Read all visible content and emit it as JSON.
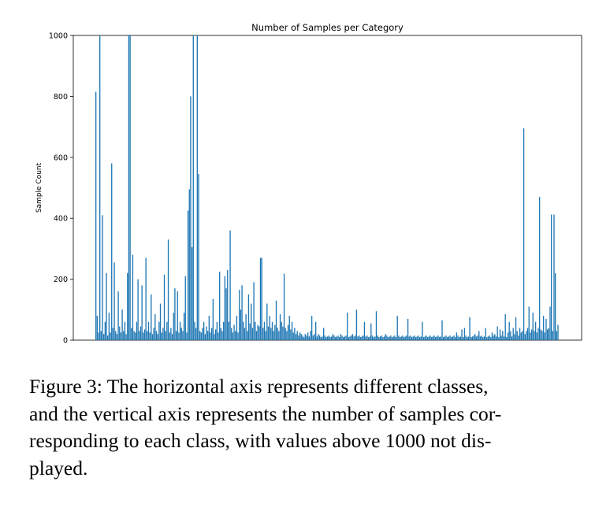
{
  "chart_data": {
    "type": "bar",
    "title": "Number of Samples per Category",
    "xlabel": "",
    "ylabel": "Sample Count",
    "ylim": [
      0,
      1000
    ],
    "yticks": [
      0,
      200,
      400,
      600,
      800,
      1000
    ],
    "grid": false,
    "legend": "none",
    "bar_color": "#1f77b4",
    "series": [
      {
        "values": [
          815,
          80,
          25,
          1000,
          30,
          410,
          20,
          60,
          220,
          15,
          90,
          25,
          580,
          40,
          255,
          30,
          20,
          160,
          45,
          25,
          100,
          30,
          60,
          20,
          220,
          1000,
          1000,
          40,
          280,
          30,
          25,
          60,
          200,
          30,
          45,
          180,
          25,
          35,
          270,
          30,
          60,
          25,
          150,
          20,
          40,
          85,
          30,
          20,
          60,
          120,
          25,
          40,
          215,
          30,
          60,
          330,
          25,
          40,
          20,
          90,
          170,
          30,
          160,
          25,
          60,
          40,
          30,
          90,
          210,
          25,
          425,
          495,
          800,
          305,
          1000,
          60,
          40,
          1000,
          545,
          30,
          25,
          40,
          60,
          20,
          45,
          30,
          80,
          25,
          40,
          135,
          20,
          35,
          60,
          25,
          225,
          40,
          30,
          60,
          210,
          170,
          230,
          60,
          360,
          40,
          25,
          50,
          30,
          80,
          25,
          165,
          100,
          180,
          60,
          40,
          85,
          30,
          150,
          55,
          120,
          40,
          190,
          60,
          30,
          50,
          45,
          270,
          270,
          40,
          60,
          30,
          120,
          45,
          80,
          40,
          60,
          30,
          50,
          130,
          40,
          30,
          85,
          60,
          45,
          218,
          40,
          30,
          50,
          80,
          35,
          60,
          25,
          40,
          20,
          30,
          15,
          25,
          20,
          15,
          10,
          20,
          15,
          25,
          12,
          30,
          80,
          15,
          20,
          60,
          12,
          20,
          15,
          10,
          12,
          40,
          15,
          10,
          12,
          15,
          10,
          12,
          20,
          15,
          10,
          12,
          15,
          10,
          20,
          15,
          10,
          12,
          15,
          90,
          10,
          12,
          15,
          20,
          12,
          15,
          100,
          12,
          15,
          10,
          12,
          15,
          60,
          12,
          15,
          10,
          12,
          55,
          15,
          10,
          12,
          95,
          15,
          10,
          12,
          15,
          10,
          12,
          20,
          15,
          10,
          12,
          15,
          10,
          12,
          15,
          10,
          80,
          15,
          10,
          12,
          15,
          10,
          12,
          15,
          70,
          12,
          15,
          10,
          12,
          15,
          10,
          12,
          15,
          10,
          12,
          60,
          10,
          12,
          15,
          10,
          12,
          15,
          10,
          12,
          15,
          10,
          12,
          15,
          10,
          12,
          65,
          10,
          12,
          15,
          10,
          12,
          15,
          10,
          12,
          15,
          10,
          25,
          15,
          10,
          12,
          35,
          10,
          40,
          15,
          10,
          12,
          75,
          10,
          12,
          15,
          20,
          12,
          15,
          30,
          12,
          15,
          10,
          12,
          40,
          10,
          12,
          15,
          10,
          25,
          15,
          20,
          12,
          45,
          10,
          35,
          15,
          30,
          12,
          85,
          10,
          25,
          60,
          30,
          12,
          40,
          20,
          75,
          30,
          15,
          40,
          25,
          30,
          695,
          20,
          30,
          40,
          110,
          25,
          35,
          90,
          30,
          60,
          25,
          40,
          470,
          35,
          30,
          80,
          25,
          70,
          35,
          40,
          110,
          412,
          30,
          412,
          220,
          30,
          50
        ]
      }
    ]
  },
  "caption": {
    "lines": [
      "Figure 3:  The horizontal axis represents different classes,",
      "and the vertical axis represents the number of samples cor-",
      "responding to each class, with values above 1000 not dis-",
      "played."
    ]
  }
}
